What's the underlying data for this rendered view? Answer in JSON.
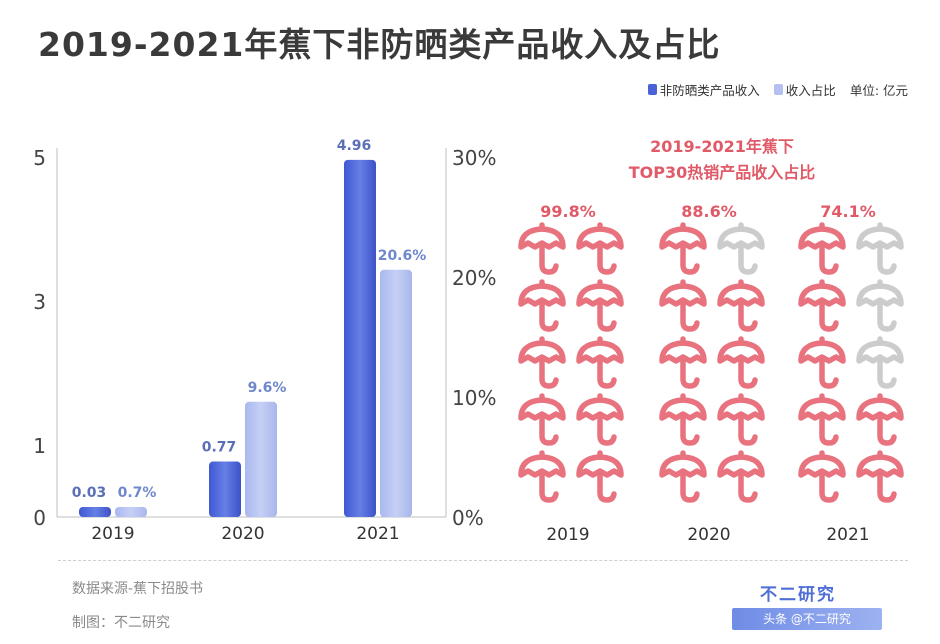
{
  "title": "2019-2021年蕉下非防晒类产品收入及占比",
  "legend": {
    "series1": "非防晒类产品收入",
    "series2": "收入占比",
    "unit": "单位: 亿元"
  },
  "colors": {
    "revenue": "#4a62d8",
    "share": "#b4c1f0",
    "umbrella_filled": "#e8737e",
    "umbrella_empty": "#cccccc",
    "label_revenue": "#5b6fb8",
    "label_share": "#6f88cc",
    "icon_title": "#e05a68"
  },
  "chart_data": [
    {
      "type": "bar",
      "categories": [
        "2019",
        "2020",
        "2021"
      ],
      "series": [
        {
          "name": "非防晒类产品收入",
          "values": [
            0.03,
            0.77,
            4.96
          ],
          "axis": "left",
          "labels": [
            "0.03",
            "0.77",
            "4.96"
          ]
        },
        {
          "name": "收入占比",
          "values": [
            0.7,
            9.6,
            20.6
          ],
          "axis": "right",
          "labels": [
            "0.7%",
            "9.6%",
            "20.6%"
          ]
        }
      ],
      "y_left": {
        "ticks": [
          "0",
          "1",
          "3",
          "5"
        ]
      },
      "y_right": {
        "ticks": [
          "0%",
          "10%",
          "20%",
          "30%"
        ]
      }
    },
    {
      "type": "pictograph",
      "title": "2019-2021年蕉下",
      "subtitle": "TOP30热销产品收入占比",
      "categories": [
        "2019",
        "2020",
        "2021"
      ],
      "values": [
        99.8,
        88.6,
        74.1
      ],
      "labels": [
        "99.8%",
        "88.6%",
        "74.1%"
      ],
      "filled_icons": [
        10,
        9,
        7
      ],
      "icon_grid": "2x5",
      "icon": "umbrella-icon"
    }
  ],
  "footer": {
    "source": "数据来源-蕉下招股书",
    "maker": "制图：不二研究",
    "brand": "不二研究",
    "brand_tag": "头条 @不二研究"
  }
}
